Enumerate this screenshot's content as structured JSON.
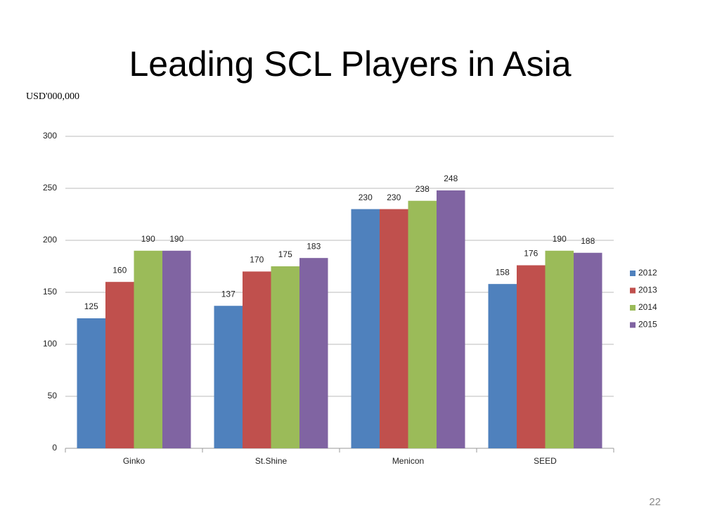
{
  "chart_data": {
    "type": "bar",
    "title": "Leading SCL Players in Asia",
    "ylabel": "USD'000,000",
    "categories": [
      "Ginko",
      "St.Shine",
      "Menicon",
      "SEED"
    ],
    "series": [
      {
        "name": "2012",
        "color": "#4f81bd",
        "values": [
          125,
          137,
          230,
          158
        ]
      },
      {
        "name": "2013",
        "color": "#c0504d",
        "values": [
          160,
          170,
          230,
          176
        ]
      },
      {
        "name": "2014",
        "color": "#9bbb59",
        "values": [
          190,
          175,
          238,
          190
        ]
      },
      {
        "name": "2015",
        "color": "#8064a2",
        "values": [
          190,
          183,
          248,
          188
        ]
      }
    ],
    "ylim": [
      0,
      300
    ],
    "yticks": [
      0,
      50,
      100,
      150,
      200,
      250,
      300
    ],
    "grid": true,
    "legend": "right"
  },
  "page_number": "22"
}
